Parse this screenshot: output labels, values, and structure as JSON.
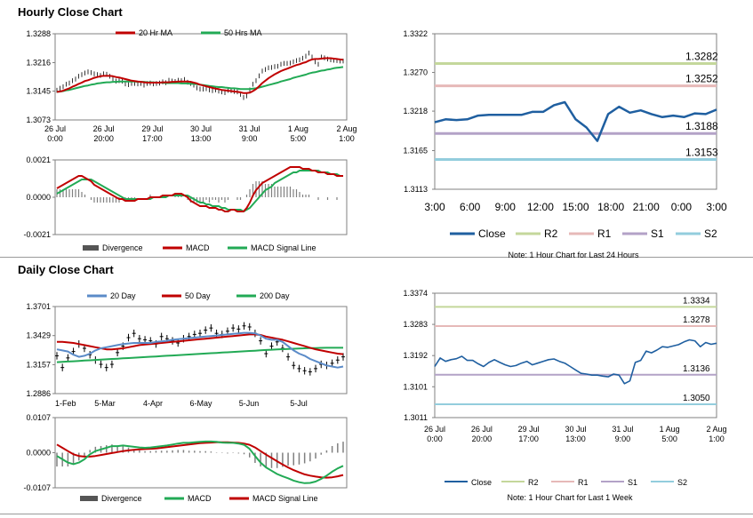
{
  "sections": {
    "hourly_title": "Hourly Close Chart",
    "daily_title": "Daily Close Chart"
  },
  "colors": {
    "ma_short": "#c00000",
    "ma_long": "#22aa55",
    "ma_20day": "#5b8bc8",
    "ma_50day": "#c00000",
    "ma_200day": "#22aa55",
    "price": "#000000",
    "divergence": "#808080",
    "macd_red": "#c00000",
    "signal_green": "#22aa55",
    "close": "#1f5fa0",
    "r2": "#c4d79b",
    "r1": "#e6b9b8",
    "s1": "#b3a2c7",
    "s2": "#93cddd"
  },
  "chart_data": [
    {
      "id": "hourly-price",
      "type": "line",
      "legend": [
        "20 Hr MA",
        "50 Hrs MA"
      ],
      "y_ticks": [
        "1.3288",
        "1.3216",
        "1.3145",
        "1.3073"
      ],
      "ylim": [
        1.3073,
        1.3288
      ],
      "x_ticks": [
        [
          "26 Jul",
          "0:00"
        ],
        [
          "26 Jul",
          "20:00"
        ],
        [
          "29 Jul",
          "17:00"
        ],
        [
          "30 Jul",
          "13:00"
        ],
        [
          "31 Jul",
          "9:00"
        ],
        [
          "1 Aug",
          "5:00"
        ],
        [
          "2 Aug",
          "1:00"
        ]
      ],
      "n": 130,
      "price": [
        1.3147,
        1.3152,
        1.3156,
        1.3162,
        1.3165,
        1.3171,
        1.3175,
        1.3182,
        1.3186,
        1.319,
        1.3193,
        1.3191,
        1.3188,
        1.3186,
        1.3184,
        1.3188,
        1.3187,
        1.3182,
        1.3176,
        1.317,
        1.3171,
        1.317,
        1.3163,
        1.3161,
        1.3164,
        1.3164,
        1.3163,
        1.3164,
        1.316,
        1.3164,
        1.3165,
        1.3163,
        1.3164,
        1.3165,
        1.3168,
        1.3166,
        1.3172,
        1.317,
        1.3169,
        1.3172,
        1.3171,
        1.3174,
        1.3167,
        1.3164,
        1.316,
        1.3153,
        1.315,
        1.315,
        1.3151,
        1.3148,
        1.3146,
        1.3148,
        1.3145,
        1.3143,
        1.3141,
        1.3147,
        1.3146,
        1.3144,
        1.3143,
        1.3137,
        1.3129,
        1.3133,
        1.3148,
        1.3162,
        1.3171,
        1.3183,
        1.3195,
        1.3199,
        1.3203,
        1.3204,
        1.3206,
        1.3207,
        1.3212,
        1.3214,
        1.3214,
        1.3215,
        1.3218,
        1.3221,
        1.3223,
        1.3227,
        1.3232,
        1.324,
        1.323,
        1.3218,
        1.3212,
        1.323,
        1.3228,
        1.3225,
        1.3223,
        1.3222,
        1.3221,
        1.322,
        1.322
      ],
      "ma20": [
        1.3143,
        1.3144,
        1.3146,
        1.3149,
        1.3152,
        1.3156,
        1.3159,
        1.3163,
        1.3166,
        1.317,
        1.3172,
        1.3175,
        1.3178,
        1.318,
        1.3182,
        1.3183,
        1.3183,
        1.3183,
        1.3182,
        1.318,
        1.3179,
        1.3177,
        1.3175,
        1.3173,
        1.3171,
        1.317,
        1.3169,
        1.3168,
        1.3167,
        1.3166,
        1.3166,
        1.3166,
        1.3166,
        1.3166,
        1.3167,
        1.3167,
        1.3167,
        1.3168,
        1.3168,
        1.3169,
        1.3169,
        1.3169,
        1.3169,
        1.3168,
        1.3166,
        1.3164,
        1.3161,
        1.3159,
        1.3157,
        1.3155,
        1.3153,
        1.3151,
        1.315,
        1.3148,
        1.3147,
        1.3146,
        1.3145,
        1.3144,
        1.3143,
        1.3142,
        1.314,
        1.314,
        1.3141,
        1.3145,
        1.315,
        1.3157,
        1.3165,
        1.3171,
        1.3177,
        1.3182,
        1.3187,
        1.3191,
        1.3195,
        1.3198,
        1.3201,
        1.3204,
        1.3207,
        1.321,
        1.3212,
        1.3215,
        1.3217,
        1.3221,
        1.3224,
        1.3225,
        1.3225,
        1.3226,
        1.3227,
        1.3227,
        1.3227,
        1.3226,
        1.3225,
        1.3224,
        1.3223
      ],
      "ma50": [
        1.3143,
        1.3144,
        1.3145,
        1.3147,
        1.3148,
        1.315,
        1.3152,
        1.3154,
        1.3156,
        1.3158,
        1.3159,
        1.3161,
        1.3162,
        1.3164,
        1.3165,
        1.3166,
        1.3167,
        1.3167,
        1.3168,
        1.3168,
        1.3169,
        1.3169,
        1.3169,
        1.3169,
        1.3169,
        1.3169,
        1.3168,
        1.3168,
        1.3168,
        1.3167,
        1.3167,
        1.3167,
        1.3166,
        1.3166,
        1.3166,
        1.3165,
        1.3165,
        1.3165,
        1.3165,
        1.3165,
        1.3164,
        1.3164,
        1.3164,
        1.3163,
        1.3163,
        1.3162,
        1.3161,
        1.316,
        1.3159,
        1.3158,
        1.3157,
        1.3156,
        1.3155,
        1.3155,
        1.3154,
        1.3153,
        1.3152,
        1.3152,
        1.3151,
        1.315,
        1.315,
        1.315,
        1.315,
        1.3151,
        1.3152,
        1.3154,
        1.3156,
        1.3158,
        1.316,
        1.3162,
        1.3164,
        1.3166,
        1.3169,
        1.3171,
        1.3173,
        1.3175,
        1.3178,
        1.318,
        1.3182,
        1.3184,
        1.3186,
        1.3189,
        1.3191,
        1.3192,
        1.3194,
        1.3196,
        1.3197,
        1.3199,
        1.32,
        1.3202,
        1.3203,
        1.3204,
        1.3205
      ]
    },
    {
      "id": "hourly-macd",
      "type": "line",
      "legend": [
        "Divergence",
        "MACD",
        "MACD Signal Line"
      ],
      "y_ticks": [
        "0.0021",
        "0.0000",
        "-0.0021"
      ],
      "ylim": [
        -0.0021,
        0.0021
      ],
      "macd": [
        0.0005,
        0.0006,
        0.0007,
        0.0008,
        0.0009,
        0.001,
        0.0011,
        0.0012,
        0.0012,
        0.0011,
        0.001,
        0.0009,
        0.0007,
        0.0006,
        0.0005,
        0.0004,
        0.0003,
        0.0002,
        0.0001,
        0.0,
        -0.0001,
        -0.0001,
        -0.0002,
        -0.0002,
        -0.0002,
        -0.0002,
        -0.0001,
        -0.0001,
        -0.0001,
        -0.0001,
        0.0,
        0.0,
        0.0,
        0.0,
        0.0001,
        0.0001,
        0.0001,
        0.0001,
        0.0002,
        0.0002,
        0.0002,
        0.0001,
        0.0,
        -0.0002,
        -0.0003,
        -0.0004,
        -0.0005,
        -0.0005,
        -0.0005,
        -0.0006,
        -0.0006,
        -0.0006,
        -0.0007,
        -0.0007,
        -0.0008,
        -0.0008,
        -0.0007,
        -0.0007,
        -0.0008,
        -0.0008,
        -0.0008,
        -0.0006,
        -0.0003,
        0.0001,
        0.0004,
        0.0006,
        0.0008,
        0.0009,
        0.001,
        0.0011,
        0.0012,
        0.0013,
        0.0014,
        0.0015,
        0.0016,
        0.0017,
        0.0017,
        0.0017,
        0.0017,
        0.0016,
        0.0016,
        0.0016,
        0.0015,
        0.0015,
        0.0014,
        0.0014,
        0.0014,
        0.0013,
        0.0013,
        0.0013,
        0.0012,
        0.0012,
        0.0012
      ],
      "signal": [
        0.0002,
        0.0003,
        0.0004,
        0.0005,
        0.0006,
        0.0007,
        0.0008,
        0.0009,
        0.001,
        0.001,
        0.001,
        0.001,
        0.0009,
        0.0008,
        0.0007,
        0.0006,
        0.0005,
        0.0004,
        0.0003,
        0.0002,
        0.0001,
        0.0,
        -0.0001,
        -0.0001,
        -0.0001,
        -0.0001,
        -0.0001,
        -0.0001,
        -0.0001,
        -0.0001,
        -0.0001,
        0.0,
        0.0,
        0.0,
        0.0,
        0.0,
        0.0001,
        0.0001,
        0.0001,
        0.0001,
        0.0001,
        0.0001,
        0.0001,
        0.0,
        -0.0001,
        -0.0002,
        -0.0003,
        -0.0003,
        -0.0004,
        -0.0004,
        -0.0005,
        -0.0005,
        -0.0005,
        -0.0006,
        -0.0006,
        -0.0007,
        -0.0007,
        -0.0007,
        -0.0007,
        -0.0007,
        -0.0008,
        -0.0007,
        -0.0006,
        -0.0004,
        -0.0002,
        0.0,
        0.0002,
        0.0004,
        0.0005,
        0.0006,
        0.0008,
        0.0009,
        0.001,
        0.0011,
        0.0012,
        0.0013,
        0.0014,
        0.0014,
        0.0015,
        0.0015,
        0.0015,
        0.0015,
        0.0015,
        0.0015,
        0.0015,
        0.0014,
        0.0014,
        0.0014,
        0.0013,
        0.0013,
        0.0013,
        0.0012,
        0.0012
      ]
    },
    {
      "id": "hourly-pivot",
      "type": "line",
      "y_ticks": [
        "1.3322",
        "1.3270",
        "1.3218",
        "1.3165",
        "1.3113"
      ],
      "ylim": [
        1.3113,
        1.3322
      ],
      "x_ticks": [
        "3:00",
        "6:00",
        "9:00",
        "12:00",
        "15:00",
        "18:00",
        "21:00",
        "0:00",
        "3:00"
      ],
      "close": [
        1.3203,
        1.3207,
        1.3206,
        1.3207,
        1.3212,
        1.3213,
        1.3213,
        1.3213,
        1.3213,
        1.3217,
        1.3217,
        1.3226,
        1.323,
        1.3207,
        1.3196,
        1.3178,
        1.3214,
        1.3224,
        1.3216,
        1.3219,
        1.3214,
        1.321,
        1.3212,
        1.321,
        1.3215,
        1.3214,
        1.322
      ],
      "levels": {
        "R2": 1.3282,
        "R1": 1.3252,
        "S1": 1.3188,
        "S2": 1.3153
      },
      "level_labels": {
        "R2": "1.3282",
        "R1": "1.3252",
        "S1": "1.3188",
        "S2": "1.3153"
      },
      "legend": [
        "Close",
        "R2",
        "R1",
        "S1",
        "S2"
      ],
      "note": "Note: 1 Hour Chart for Last 24 Hours"
    },
    {
      "id": "daily-price",
      "type": "line",
      "legend": [
        "20 Day",
        "50 Day",
        "200 Day"
      ],
      "y_ticks": [
        "1.3701",
        "1.3429",
        "1.3157",
        "1.2886"
      ],
      "ylim": [
        1.2886,
        1.3701
      ],
      "x_ticks": [
        "1-Feb",
        "5-Mar",
        "4-Apr",
        "6-May",
        "5-Jun",
        "5-Jul"
      ],
      "price": [
        1.324,
        1.313,
        1.322,
        1.328,
        1.335,
        1.331,
        1.325,
        1.32,
        1.316,
        1.313,
        1.316,
        1.327,
        1.333,
        1.341,
        1.345,
        1.34,
        1.339,
        1.338,
        1.335,
        1.342,
        1.34,
        1.338,
        1.336,
        1.34,
        1.342,
        1.344,
        1.345,
        1.348,
        1.35,
        1.345,
        1.344,
        1.347,
        1.35,
        1.349,
        1.352,
        1.351,
        1.345,
        1.338,
        1.326,
        1.333,
        1.337,
        1.331,
        1.323,
        1.315,
        1.312,
        1.31,
        1.309,
        1.312,
        1.316,
        1.315,
        1.317,
        1.32,
        1.323
      ],
      "ma20": [
        1.33,
        1.329,
        1.328,
        1.325,
        1.323,
        1.324,
        1.326,
        1.329,
        1.331,
        1.332,
        1.333,
        1.334,
        1.335,
        1.3355,
        1.336,
        1.336,
        1.336,
        1.336,
        1.337,
        1.3375,
        1.338,
        1.339,
        1.3395,
        1.34,
        1.3405,
        1.341,
        1.3415,
        1.342,
        1.3425,
        1.343,
        1.3435,
        1.344,
        1.3445,
        1.345,
        1.3455,
        1.3455,
        1.345,
        1.343,
        1.34,
        1.339,
        1.339,
        1.337,
        1.333,
        1.329,
        1.326,
        1.324,
        1.321,
        1.319,
        1.317,
        1.315,
        1.314,
        1.313,
        1.314
      ],
      "ma50": [
        1.337,
        1.337,
        1.3365,
        1.336,
        1.335,
        1.334,
        1.333,
        1.332,
        1.331,
        1.33,
        1.33,
        1.3305,
        1.331,
        1.332,
        1.333,
        1.334,
        1.3345,
        1.335,
        1.3355,
        1.336,
        1.3365,
        1.337,
        1.3375,
        1.338,
        1.3385,
        1.339,
        1.3395,
        1.34,
        1.3405,
        1.341,
        1.3415,
        1.342,
        1.3425,
        1.343,
        1.3435,
        1.344,
        1.344,
        1.3435,
        1.342,
        1.341,
        1.34,
        1.339,
        1.3375,
        1.336,
        1.3345,
        1.333,
        1.3315,
        1.33,
        1.329,
        1.328,
        1.327,
        1.326,
        1.3255
      ],
      "ma200": [
        1.318,
        1.3183,
        1.3186,
        1.3189,
        1.3192,
        1.3195,
        1.3198,
        1.3201,
        1.3204,
        1.3207,
        1.321,
        1.3213,
        1.3216,
        1.3219,
        1.3222,
        1.3225,
        1.3228,
        1.3231,
        1.3234,
        1.3237,
        1.324,
        1.3243,
        1.3246,
        1.3249,
        1.3252,
        1.3255,
        1.3258,
        1.3261,
        1.3264,
        1.3267,
        1.327,
        1.3273,
        1.3276,
        1.3279,
        1.3282,
        1.3285,
        1.3288,
        1.3291,
        1.3294,
        1.3297,
        1.33,
        1.3302,
        1.3304,
        1.3306,
        1.3308,
        1.331,
        1.3312,
        1.3313,
        1.3314,
        1.3315,
        1.3315,
        1.3315,
        1.3315
      ]
    },
    {
      "id": "daily-macd",
      "type": "line",
      "legend": [
        "Divergence",
        "MACD",
        "MACD Signal Line"
      ],
      "y_ticks": [
        "0.0107",
        "0.0000",
        "-0.0107"
      ],
      "ylim": [
        -0.0107,
        0.0107
      ],
      "macd": [
        -0.001,
        -0.002,
        -0.003,
        -0.0035,
        -0.003,
        -0.002,
        -0.0005,
        0.0005,
        0.001,
        0.0015,
        0.002,
        0.002,
        0.0022,
        0.002,
        0.0018,
        0.0016,
        0.0015,
        0.0016,
        0.0018,
        0.002,
        0.0022,
        0.0025,
        0.0028,
        0.003,
        0.003,
        0.0032,
        0.0033,
        0.0034,
        0.0034,
        0.0033,
        0.0031,
        0.003,
        0.003,
        0.0028,
        0.0024,
        0.0012,
        -0.001,
        -0.003,
        -0.0045,
        -0.0055,
        -0.0065,
        -0.0072,
        -0.0078,
        -0.0085,
        -0.009,
        -0.0093,
        -0.0092,
        -0.0088,
        -0.008,
        -0.007,
        -0.0058,
        -0.0048,
        -0.004
      ],
      "signal": [
        0.0025,
        0.0015,
        0.0005,
        -0.0005,
        -0.001,
        -0.0012,
        -0.0012,
        -0.001,
        -0.0007,
        -0.0004,
        -0.0001,
        0.0002,
        0.0005,
        0.0007,
        0.0009,
        0.001,
        0.0011,
        0.0012,
        0.0013,
        0.0015,
        0.0017,
        0.0019,
        0.0021,
        0.0023,
        0.0025,
        0.0027,
        0.0029,
        0.003,
        0.0031,
        0.0032,
        0.0032,
        0.0032,
        0.0031,
        0.003,
        0.0028,
        0.0024,
        0.0016,
        0.0005,
        -0.0006,
        -0.0016,
        -0.0026,
        -0.0036,
        -0.0045,
        -0.0053,
        -0.006,
        -0.0066,
        -0.007,
        -0.0073,
        -0.0075,
        -0.0076,
        -0.0075,
        -0.0072,
        -0.0068
      ]
    },
    {
      "id": "daily-pivot",
      "type": "line",
      "y_ticks": [
        "1.3374",
        "1.3283",
        "1.3192",
        "1.3101",
        "1.3011"
      ],
      "ylim": [
        1.3011,
        1.3374
      ],
      "x_ticks": [
        [
          "26 Jul",
          "0:00"
        ],
        [
          "26 Jul",
          "20:00"
        ],
        [
          "29 Jul",
          "17:00"
        ],
        [
          "30 Jul",
          "13:00"
        ],
        [
          "31 Jul",
          "9:00"
        ],
        [
          "1 Aug",
          "5:00"
        ],
        [
          "2 Aug",
          "1:00"
        ]
      ],
      "close": [
        1.316,
        1.3185,
        1.3175,
        1.318,
        1.3183,
        1.319,
        1.3178,
        1.3178,
        1.3168,
        1.316,
        1.3172,
        1.318,
        1.3172,
        1.3165,
        1.316,
        1.3163,
        1.317,
        1.3175,
        1.3165,
        1.317,
        1.3175,
        1.318,
        1.3182,
        1.3175,
        1.317,
        1.316,
        1.315,
        1.314,
        1.3138,
        1.3135,
        1.3135,
        1.3132,
        1.313,
        1.3138,
        1.3135,
        1.311,
        1.3118,
        1.3172,
        1.3178,
        1.3205,
        1.32,
        1.3208,
        1.3218,
        1.3216,
        1.322,
        1.3224,
        1.3232,
        1.3238,
        1.3235,
        1.3218,
        1.323,
        1.3225,
        1.3228
      ],
      "levels": {
        "R2": 1.3334,
        "R1": 1.3278,
        "S1": 1.3136,
        "S2": 1.305
      },
      "level_labels": {
        "R2": "1.3334",
        "R1": "1.3278",
        "S1": "1.3136",
        "S2": "1.3050"
      },
      "legend": [
        "Close",
        "R2",
        "R1",
        "S1",
        "S2"
      ],
      "note": "Note: 1 Hour Chart for Last 1 Week"
    }
  ]
}
